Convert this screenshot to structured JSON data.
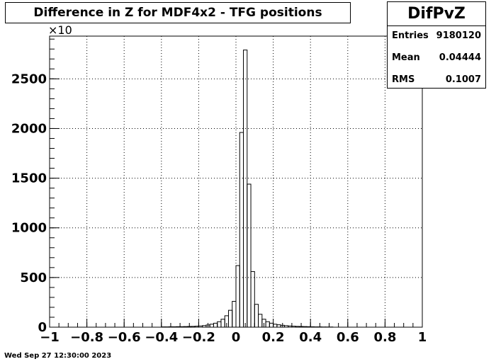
{
  "header": {
    "title": "Difference in Z for MDF4x2 - TFG positions"
  },
  "stats": {
    "name": "DifPvZ",
    "rows": [
      {
        "label": "Entries",
        "value": "9180120"
      },
      {
        "label": "Mean",
        "value": "0.04444"
      },
      {
        "label": "RMS",
        "value": "0.1007"
      }
    ]
  },
  "footer": {
    "timestamp": "Wed Sep 27 12:30:00 2023"
  },
  "chart_data": {
    "type": "bar",
    "title": "Difference in Z for MDF4x2 - TFG positions",
    "xlabel": "",
    "ylabel": "",
    "y_multiplier_label": "×10",
    "xlim": [
      -1,
      1
    ],
    "ylim": [
      0,
      2930
    ],
    "grid": true,
    "x_ticks": [
      -1,
      -0.8,
      -0.6,
      -0.4,
      -0.2,
      0,
      0.2,
      0.4,
      0.6,
      0.8,
      1
    ],
    "x_tick_labels": [
      "−1",
      "−0.8",
      "−0.6",
      "−0.4",
      "−0.2",
      "0",
      "0.2",
      "0.4",
      "0.6",
      "0.8",
      "1"
    ],
    "y_ticks": [
      0,
      500,
      1000,
      1500,
      2000,
      2500
    ],
    "y_tick_labels": [
      "0",
      "500",
      "1000",
      "1500",
      "2000",
      "2500"
    ],
    "bin_width": 0.02,
    "bins": [
      {
        "x0": -0.4,
        "y": 3
      },
      {
        "x0": -0.38,
        "y": 3
      },
      {
        "x0": -0.36,
        "y": 4
      },
      {
        "x0": -0.34,
        "y": 4
      },
      {
        "x0": -0.32,
        "y": 5
      },
      {
        "x0": -0.3,
        "y": 5
      },
      {
        "x0": -0.28,
        "y": 6
      },
      {
        "x0": -0.26,
        "y": 7
      },
      {
        "x0": -0.24,
        "y": 8
      },
      {
        "x0": -0.22,
        "y": 10
      },
      {
        "x0": -0.2,
        "y": 12
      },
      {
        "x0": -0.18,
        "y": 16
      },
      {
        "x0": -0.16,
        "y": 22
      },
      {
        "x0": -0.14,
        "y": 30
      },
      {
        "x0": -0.12,
        "y": 40
      },
      {
        "x0": -0.1,
        "y": 55
      },
      {
        "x0": -0.08,
        "y": 80
      },
      {
        "x0": -0.06,
        "y": 115
      },
      {
        "x0": -0.04,
        "y": 170
      },
      {
        "x0": -0.02,
        "y": 260
      },
      {
        "x0": 0.0,
        "y": 620
      },
      {
        "x0": 0.02,
        "y": 1960
      },
      {
        "x0": 0.04,
        "y": 2790
      },
      {
        "x0": 0.06,
        "y": 1440
      },
      {
        "x0": 0.08,
        "y": 560
      },
      {
        "x0": 0.1,
        "y": 230
      },
      {
        "x0": 0.12,
        "y": 130
      },
      {
        "x0": 0.14,
        "y": 80
      },
      {
        "x0": 0.16,
        "y": 55
      },
      {
        "x0": 0.18,
        "y": 40
      },
      {
        "x0": 0.2,
        "y": 30
      },
      {
        "x0": 0.22,
        "y": 24
      },
      {
        "x0": 0.24,
        "y": 19
      },
      {
        "x0": 0.26,
        "y": 15
      },
      {
        "x0": 0.28,
        "y": 12
      },
      {
        "x0": 0.3,
        "y": 10
      },
      {
        "x0": 0.32,
        "y": 8
      },
      {
        "x0": 0.34,
        "y": 7
      },
      {
        "x0": 0.36,
        "y": 6
      },
      {
        "x0": 0.38,
        "y": 5
      },
      {
        "x0": 0.4,
        "y": 4
      },
      {
        "x0": 0.42,
        "y": 3
      },
      {
        "x0": 0.44,
        "y": 3
      },
      {
        "x0": 0.46,
        "y": 2
      },
      {
        "x0": 0.48,
        "y": 2
      },
      {
        "x0": 0.5,
        "y": 2
      }
    ]
  }
}
